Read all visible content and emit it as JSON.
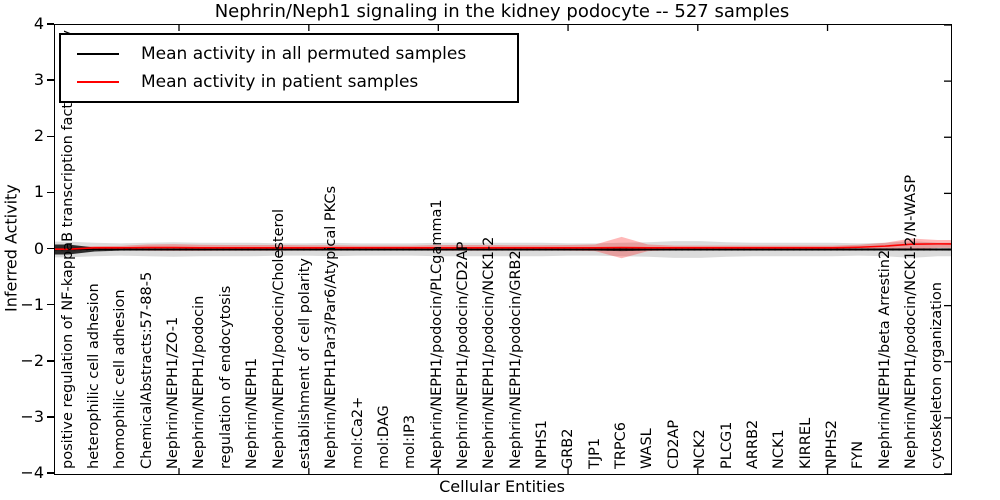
{
  "title": "Nephrin/Neph1 signaling in the kidney podocyte -- 527 samples",
  "axes": {
    "xlabel": "Cellular Entities",
    "ylabel": "Inferred Activity",
    "y_tick_labels": [
      "4",
      "3",
      "2",
      "1",
      "0",
      "−1",
      "−2",
      "−3",
      "−4"
    ]
  },
  "legend": {
    "items": [
      {
        "label": "Mean activity in all permuted samples",
        "color": "#000000"
      },
      {
        "label": "Mean activity in patient samples",
        "color": "#ff0000"
      }
    ]
  },
  "colors": {
    "permuted_line": "#000000",
    "patient_line": "#ff0000",
    "permuted_band": "rgba(0,0,0,0.14)",
    "patient_band": "rgba(255,0,0,0.28)",
    "dark_band": "rgba(0,0,0,0.8)",
    "frame": "#000000"
  },
  "chart_data": {
    "type": "line",
    "title": "Nephrin/Neph1 signaling in the kidney podocyte -- 527 samples",
    "xlabel": "Cellular Entities",
    "ylabel": "Inferred Activity",
    "ylim": [
      -4,
      4
    ],
    "y_ticks": [
      4,
      3,
      2,
      1,
      0,
      -1,
      -2,
      -3,
      -4
    ],
    "grid": false,
    "legend_position": "upper left",
    "zero_reference_line": "dotted",
    "categories": [
      "positive regulation of NF-kappaB transcription factor activity",
      "heterophilic cell adhesion",
      "homophilic cell adhesion",
      "ChemicalAbstracts:57-88-5",
      "Nephrin/NEPH1/ZO-1",
      "Nephrin/NEPH1/podocin",
      "regulation of endocytosis",
      "Nephrin/NEPH1",
      "Nephrin/NEPH1/podocin/Cholesterol",
      "establishment of cell polarity",
      "Nephrin/NEPH1Par3/Par6/Atypical PKCs",
      "mol:Ca2+",
      "mol:DAG",
      "mol:IP3",
      "Nephrin/NEPH1/podocin/PLCgamma1",
      "Nephrin/NEPH1/podocin/CD2AP",
      "Nephrin/NEPH1/podocin/NCK1-2",
      "Nephrin/NEPH1/podocin/GRB2",
      "NPHS1",
      "GRB2",
      "TJP1",
      "TRPC6",
      "WASL",
      "CD2AP",
      "NCK2",
      "PLCG1",
      "ARRB2",
      "NCK1",
      "KIRREL",
      "NPHS2",
      "FYN",
      "Nephrin/NEPH1/beta Arrestin2",
      "Nephrin/NEPH1/podocin/NCK1-2/N-WASP",
      "cytoskeleton organization"
    ],
    "series": [
      {
        "name": "Mean activity in all permuted samples",
        "color": "#000000",
        "values": [
          0,
          0,
          0,
          0,
          0,
          0,
          0,
          0,
          0,
          0,
          0,
          0,
          0,
          0,
          0,
          0,
          0,
          0,
          0,
          0,
          0,
          0,
          0,
          0,
          0,
          0,
          0,
          0,
          0,
          0,
          0,
          0,
          0,
          0
        ]
      },
      {
        "name": "Mean activity in patient samples",
        "color": "#ff0000",
        "values": [
          0.005,
          0.03,
          0.03,
          0.035,
          0.035,
          0.03,
          0.03,
          0.03,
          0.03,
          0.03,
          0.03,
          0.03,
          0.03,
          0.03,
          0.03,
          0.03,
          0.03,
          0.03,
          0.03,
          0.03,
          0.03,
          0.035,
          0.03,
          0.03,
          0.03,
          0.03,
          0.03,
          0.03,
          0.03,
          0.03,
          0.04,
          0.06,
          0.095,
          0.1
        ]
      }
    ],
    "bands": [
      {
        "name": "permuted-samples-spread",
        "color": "rgba(0,0,0,0.14)",
        "half_widths": [
          0.14,
          0.12,
          0.11,
          0.12,
          0.13,
          0.12,
          0.12,
          0.12,
          0.11,
          0.11,
          0.12,
          0.11,
          0.11,
          0.11,
          0.12,
          0.12,
          0.12,
          0.12,
          0.12,
          0.11,
          0.11,
          0.12,
          0.13,
          0.15,
          0.15,
          0.13,
          0.12,
          0.12,
          0.12,
          0.12,
          0.11,
          0.12,
          0.15,
          0.12
        ]
      },
      {
        "name": "patient-samples-spread",
        "color": "rgba(255,0,0,0.28)",
        "half_widths": [
          0.03,
          0.03,
          0.035,
          0.055,
          0.06,
          0.055,
          0.05,
          0.05,
          0.05,
          0.045,
          0.045,
          0.04,
          0.04,
          0.04,
          0.05,
          0.05,
          0.05,
          0.045,
          0.045,
          0.05,
          0.06,
          0.19,
          0.06,
          0.04,
          0.04,
          0.04,
          0.04,
          0.04,
          0.04,
          0.04,
          0.045,
          0.06,
          0.1,
          0.07
        ]
      },
      {
        "name": "permuted-mean-core",
        "color": "rgba(0,0,0,0.8)",
        "half_widths": [
          0.09,
          0.035,
          0.02,
          0.02,
          0.02,
          0.02,
          0.02,
          0.02,
          0.02,
          0.02,
          0.02,
          0.02,
          0.02,
          0.02,
          0.02,
          0.02,
          0.02,
          0.02,
          0.02,
          0.02,
          0.02,
          0.03,
          0.02,
          0.02,
          0.02,
          0.02,
          0.02,
          0.02,
          0.02,
          0.02,
          0.02,
          0.02,
          0.02,
          0.02
        ]
      }
    ]
  }
}
